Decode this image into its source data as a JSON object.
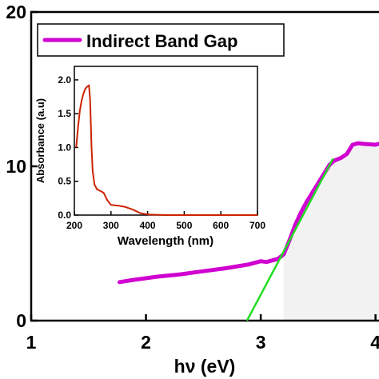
{
  "chart_data": [
    {
      "type": "line",
      "title": "",
      "xlabel": "hν (eV)",
      "ylabel": "",
      "xlim": [
        1,
        4.1
      ],
      "ylim": [
        0,
        20
      ],
      "xticks": [
        1,
        2,
        3,
        4
      ],
      "yticks": [
        0,
        10,
        20
      ],
      "tick_labels_x": [
        "1",
        "2",
        "3",
        "4"
      ],
      "tick_labels_y": [
        "0",
        "10",
        "20"
      ],
      "grid": false,
      "legend_placement": "top-left",
      "series": [
        {
          "name": "Indirect Band Gap",
          "color": "#d000d0",
          "x": [
            1.77,
            1.9,
            2.1,
            2.3,
            2.5,
            2.7,
            2.9,
            3.0,
            3.05,
            3.1,
            3.15,
            3.2,
            3.25,
            3.3,
            3.35,
            3.4,
            3.45,
            3.5,
            3.55,
            3.6,
            3.63,
            3.65,
            3.7,
            3.75,
            3.8,
            3.85,
            3.9,
            4.0,
            4.1
          ],
          "y": [
            2.5,
            2.65,
            2.85,
            3.0,
            3.2,
            3.4,
            3.65,
            3.85,
            3.8,
            3.9,
            4.0,
            4.3,
            5.2,
            6.2,
            7.0,
            7.7,
            8.3,
            8.9,
            9.5,
            10.1,
            10.3,
            10.4,
            10.55,
            10.8,
            11.4,
            11.5,
            11.45,
            11.4,
            11.6
          ]
        }
      ],
      "fit_line": {
        "color": "#22dd22",
        "x": [
          2.88,
          3.63
        ],
        "y": [
          0,
          10.5
        ]
      }
    },
    {
      "type": "line",
      "title": "",
      "xlabel": "Wavelength (nm)",
      "ylabel": "Absorbance (a.u)",
      "xlim": [
        200,
        700
      ],
      "ylim": [
        0,
        2.2
      ],
      "xticks": [
        200,
        300,
        400,
        500,
        600,
        700
      ],
      "yticks": [
        0.0,
        0.5,
        1.0,
        1.5,
        2.0
      ],
      "tick_labels_x": [
        "200",
        "300",
        "400",
        "500",
        "600",
        "700"
      ],
      "tick_labels_y": [
        "0.0",
        "0.5",
        "1.0",
        "1.5",
        "2.0"
      ],
      "grid": false,
      "series": [
        {
          "color": "#cc2200",
          "x": [
            205,
            210,
            215,
            220,
            225,
            230,
            235,
            240,
            243,
            247,
            250,
            255,
            262,
            270,
            280,
            290,
            300,
            320,
            340,
            360,
            380,
            400,
            450,
            500,
            600,
            700
          ],
          "y": [
            1.0,
            1.3,
            1.55,
            1.7,
            1.8,
            1.87,
            1.9,
            1.92,
            1.7,
            1.0,
            0.65,
            0.45,
            0.38,
            0.36,
            0.33,
            0.22,
            0.15,
            0.14,
            0.12,
            0.08,
            0.03,
            0.01,
            0.0,
            0.0,
            0.0,
            0.0
          ]
        }
      ]
    }
  ]
}
